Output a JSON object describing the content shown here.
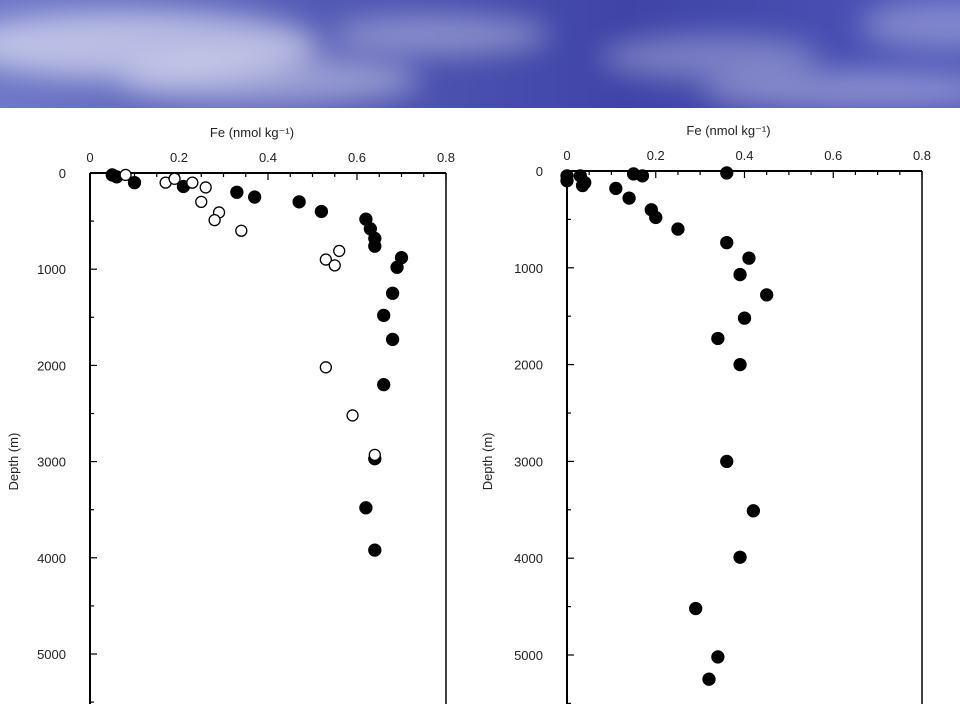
{
  "chart_data": [
    {
      "type": "scatter",
      "title": "",
      "xlabel": "Fe (nmol kg⁻¹)",
      "ylabel": "Depth (m)",
      "x_axis_position": "top",
      "y_inverted": true,
      "xlim": [
        0,
        0.8
      ],
      "ylim": [
        0,
        5500
      ],
      "x_ticks": [
        "0",
        "0.2",
        "0.4",
        "0.6",
        "0.8"
      ],
      "y_ticks": [
        "0",
        "1000",
        "2000",
        "3000",
        "4000",
        "5000"
      ],
      "series": [
        {
          "marker": "filled-circle",
          "points": [
            [
              0.05,
              20
            ],
            [
              0.06,
              40
            ],
            [
              0.1,
              100
            ],
            [
              0.21,
              140
            ],
            [
              0.33,
              200
            ],
            [
              0.37,
              250
            ],
            [
              0.47,
              300
            ],
            [
              0.52,
              400
            ],
            [
              0.62,
              480
            ],
            [
              0.63,
              580
            ],
            [
              0.64,
              680
            ],
            [
              0.64,
              760
            ],
            [
              0.7,
              880
            ],
            [
              0.69,
              980
            ],
            [
              0.68,
              1250
            ],
            [
              0.66,
              1480
            ],
            [
              0.68,
              1730
            ],
            [
              0.66,
              2200
            ],
            [
              0.64,
              2970
            ],
            [
              0.62,
              3480
            ],
            [
              0.64,
              3920
            ]
          ]
        },
        {
          "marker": "open-circle",
          "points": [
            [
              0.08,
              20
            ],
            [
              0.17,
              100
            ],
            [
              0.19,
              60
            ],
            [
              0.23,
              100
            ],
            [
              0.26,
              150
            ],
            [
              0.25,
              300
            ],
            [
              0.29,
              410
            ],
            [
              0.28,
              490
            ],
            [
              0.34,
              600
            ],
            [
              0.56,
              810
            ],
            [
              0.53,
              900
            ],
            [
              0.55,
              960
            ],
            [
              0.53,
              2020
            ],
            [
              0.59,
              2520
            ],
            [
              0.64,
              2930
            ]
          ]
        }
      ]
    },
    {
      "type": "scatter",
      "title": "",
      "xlabel": "Fe (nmol kg⁻¹)",
      "ylabel": "Depth (m)",
      "x_axis_position": "top",
      "y_inverted": true,
      "xlim": [
        0,
        0.8
      ],
      "ylim": [
        0,
        5500
      ],
      "x_ticks": [
        "0",
        "0.2",
        "0.4",
        "0.6",
        "0.8"
      ],
      "y_ticks": [
        "0",
        "1000",
        "2000",
        "3000",
        "4000",
        "5000"
      ],
      "series": [
        {
          "marker": "filled-circle",
          "points": [
            [
              0.0,
              50
            ],
            [
              0.0,
              100
            ],
            [
              0.03,
              50
            ],
            [
              0.04,
              120
            ],
            [
              0.035,
              150
            ],
            [
              0.15,
              30
            ],
            [
              0.17,
              50
            ],
            [
              0.36,
              20
            ],
            [
              0.11,
              180
            ],
            [
              0.14,
              280
            ],
            [
              0.19,
              400
            ],
            [
              0.2,
              480
            ],
            [
              0.25,
              600
            ],
            [
              0.36,
              740
            ],
            [
              0.41,
              900
            ],
            [
              0.39,
              1070
            ],
            [
              0.45,
              1280
            ],
            [
              0.4,
              1520
            ],
            [
              0.34,
              1730
            ],
            [
              0.39,
              2000
            ],
            [
              0.36,
              3000
            ],
            [
              0.42,
              3510
            ],
            [
              0.39,
              3990
            ],
            [
              0.29,
              4520
            ],
            [
              0.34,
              5020
            ],
            [
              0.32,
              5250
            ]
          ]
        }
      ]
    }
  ]
}
